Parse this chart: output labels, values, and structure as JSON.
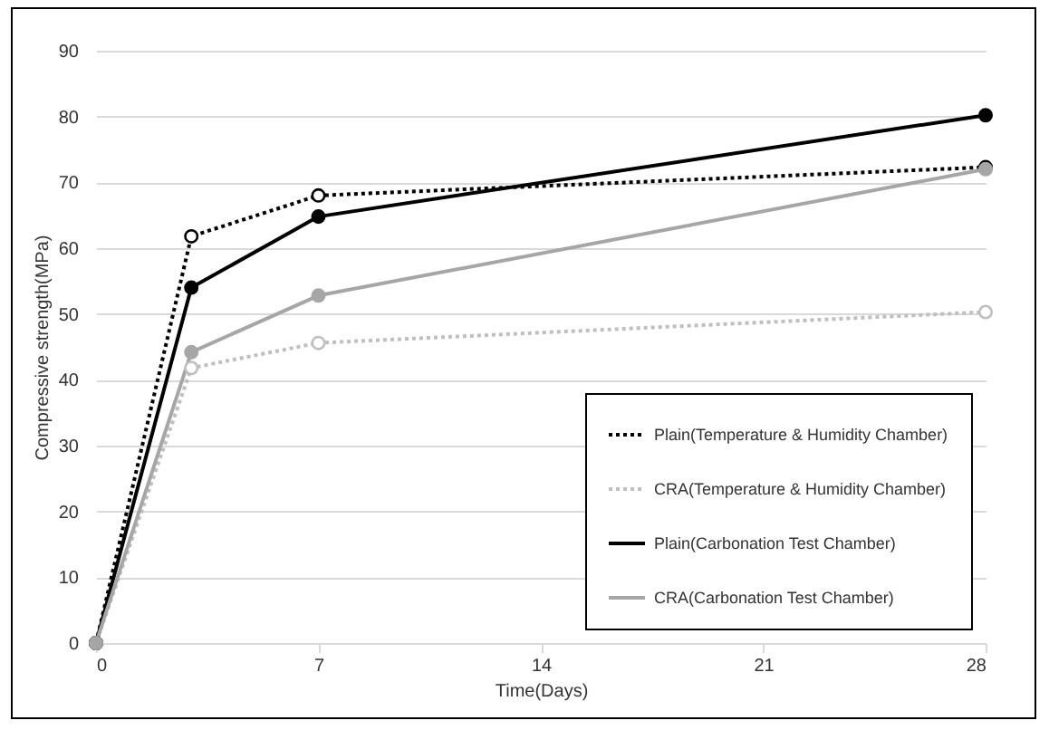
{
  "chart_data": {
    "type": "line",
    "xlabel": "Time(Days)",
    "ylabel": "Compressive strength(MPa)",
    "x": [
      0,
      3,
      7,
      28
    ],
    "series": [
      {
        "name": "Plain(Temperature & Humidity Chamber)",
        "color": "#000000",
        "line_style": "dotted",
        "values": [
          0,
          61.8,
          68,
          72.3
        ]
      },
      {
        "name": "CRA(Temperature & Humidity Chamber)",
        "color": "#bfbfbf",
        "line_style": "dotted",
        "values": [
          0,
          41.8,
          45.6,
          50.3
        ]
      },
      {
        "name": "Plain(Carbonation Test Chamber)",
        "color": "#000000",
        "line_style": "solid",
        "values": [
          0,
          54,
          64.8,
          80.2
        ]
      },
      {
        "name": "CRA(Carbonation Test Chamber)",
        "color": "#a6a6a6",
        "line_style": "solid",
        "values": [
          0,
          44.2,
          52.8,
          72
        ]
      }
    ],
    "xlim": [
      0,
      28
    ],
    "xticks": [
      0,
      7,
      14,
      21,
      28
    ],
    "ylim": [
      0,
      90
    ],
    "yticks": [
      0,
      10,
      20,
      30,
      40,
      50,
      60,
      70,
      80,
      90
    ],
    "grid": "y",
    "legend": "bottom right",
    "marker": "circle"
  }
}
